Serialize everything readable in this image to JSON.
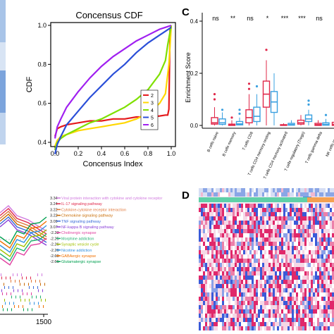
{
  "panels": {
    "c_letter": "C",
    "d_letter": "D"
  },
  "chart_data": [
    {
      "type": "line",
      "title": "Concensus CDF",
      "xlabel": "Concensus Index",
      "ylabel": "CDF",
      "xlim": [
        0,
        1
      ],
      "ylim": [
        0.4,
        1.0
      ],
      "xticks": [
        "0.0",
        "0.2",
        "0.4",
        "0.6",
        "0.8",
        "1.0"
      ],
      "yticks": [
        "0.4",
        "0.6",
        "0.8",
        "1.0"
      ],
      "legend_position": "right",
      "legend_labels": [
        "2",
        "3",
        "4",
        "5",
        "6"
      ],
      "series": [
        {
          "name": "2",
          "color": "#e41a1c",
          "x": [
            0.0,
            0.02,
            0.05,
            0.1,
            0.2,
            0.3,
            0.4,
            0.5,
            0.6,
            0.7,
            0.8,
            0.9,
            0.95,
            0.97,
            0.98,
            0.99,
            1.0
          ],
          "y": [
            0.43,
            0.47,
            0.48,
            0.49,
            0.5,
            0.51,
            0.51,
            0.52,
            0.52,
            0.53,
            0.53,
            0.535,
            0.54,
            0.54,
            0.57,
            0.98,
            1.0
          ]
        },
        {
          "name": "3",
          "color": "#ffd700",
          "x": [
            0.0,
            0.02,
            0.05,
            0.1,
            0.2,
            0.3,
            0.4,
            0.5,
            0.6,
            0.7,
            0.8,
            0.9,
            0.95,
            0.98,
            1.0
          ],
          "y": [
            0.38,
            0.41,
            0.43,
            0.44,
            0.46,
            0.47,
            0.48,
            0.49,
            0.5,
            0.52,
            0.55,
            0.6,
            0.65,
            0.8,
            1.0
          ]
        },
        {
          "name": "4",
          "color": "#7fe000",
          "x": [
            0.0,
            0.02,
            0.05,
            0.1,
            0.2,
            0.3,
            0.4,
            0.5,
            0.6,
            0.7,
            0.8,
            0.9,
            0.95,
            0.97,
            1.0
          ],
          "y": [
            0.36,
            0.4,
            0.42,
            0.44,
            0.47,
            0.5,
            0.52,
            0.55,
            0.58,
            0.62,
            0.67,
            0.75,
            0.82,
            0.9,
            1.0
          ]
        },
        {
          "name": "5",
          "color": "#2b4fd8",
          "x": [
            0.0,
            0.02,
            0.05,
            0.1,
            0.2,
            0.3,
            0.4,
            0.5,
            0.6,
            0.7,
            0.8,
            0.9,
            0.95,
            1.0
          ],
          "y": [
            0.34,
            0.39,
            0.43,
            0.49,
            0.56,
            0.63,
            0.69,
            0.75,
            0.8,
            0.86,
            0.91,
            0.95,
            0.97,
            0.99
          ]
        },
        {
          "name": "6",
          "color": "#a020f0",
          "x": [
            0.0,
            0.02,
            0.05,
            0.1,
            0.2,
            0.3,
            0.4,
            0.5,
            0.6,
            0.7,
            0.8,
            0.9,
            0.95,
            1.0
          ],
          "y": [
            0.42,
            0.48,
            0.52,
            0.58,
            0.66,
            0.73,
            0.79,
            0.84,
            0.88,
            0.92,
            0.95,
            0.98,
            0.99,
            1.0
          ]
        }
      ]
    },
    {
      "type": "box",
      "ylabel": "Enrichment Score",
      "ylim": [
        0,
        0.4
      ],
      "yticks": [
        "0.0",
        "0.2",
        "0.4"
      ],
      "group_colors": [
        "#e0284a",
        "#3aa0e0"
      ],
      "categories": [
        {
          "label": "B cells naive",
          "sig": "ns",
          "boxes": [
            {
              "q1": 0.005,
              "med": 0.01,
              "q3": 0.03,
              "lo": 0,
              "hi": 0.07,
              "out": [
                0.1,
                0.12
              ]
            },
            {
              "q1": 0.004,
              "med": 0.01,
              "q3": 0.025,
              "lo": 0,
              "hi": 0.05,
              "out": [
                0.06
              ]
            }
          ]
        },
        {
          "label": "B cells memory",
          "sig": "**",
          "boxes": [
            {
              "q1": 0.0,
              "med": 0.002,
              "q3": 0.005,
              "lo": 0,
              "hi": 0.02,
              "out": [
                0.03
              ]
            },
            {
              "q1": 0.002,
              "med": 0.006,
              "q3": 0.015,
              "lo": 0,
              "hi": 0.03,
              "out": [
                0.045,
                0.06
              ]
            }
          ]
        },
        {
          "label": "T cells CD8",
          "sig": "ns",
          "boxes": [
            {
              "q1": 0.01,
              "med": 0.03,
              "q3": 0.06,
              "lo": 0,
              "hi": 0.12,
              "out": [
                0.14,
                0.16
              ]
            },
            {
              "q1": 0.015,
              "med": 0.035,
              "q3": 0.07,
              "lo": 0,
              "hi": 0.12,
              "out": [
                0.15
              ]
            }
          ]
        },
        {
          "label": "T cells CD4 memory resting",
          "sig": "*",
          "boxes": [
            {
              "q1": 0.07,
              "med": 0.12,
              "q3": 0.17,
              "lo": 0.0,
              "hi": 0.25,
              "out": [
                0.29
              ]
            },
            {
              "q1": 0.05,
              "med": 0.09,
              "q3": 0.13,
              "lo": 0.0,
              "hi": 0.2,
              "out": []
            }
          ]
        },
        {
          "label": "T cells CD4 memory activated",
          "sig": "***",
          "boxes": [
            {
              "q1": 0.0,
              "med": 0.001,
              "q3": 0.003,
              "lo": 0,
              "hi": 0.008,
              "out": []
            },
            {
              "q1": 0.001,
              "med": 0.003,
              "q3": 0.008,
              "lo": 0,
              "hi": 0.02,
              "out": []
            }
          ]
        },
        {
          "label": "T cells regulatory (Tregs)",
          "sig": "***",
          "boxes": [
            {
              "q1": 0.005,
              "med": 0.01,
              "q3": 0.02,
              "lo": 0,
              "hi": 0.04,
              "out": []
            },
            {
              "q1": 0.015,
              "med": 0.025,
              "q3": 0.04,
              "lo": 0,
              "hi": 0.06,
              "out": [
                0.08,
                0.095
              ]
            }
          ]
        },
        {
          "label": "T cells gamma delta",
          "sig": "ns",
          "boxes": [
            {
              "q1": 0.0,
              "med": 0.003,
              "q3": 0.008,
              "lo": 0,
              "hi": 0.02,
              "out": []
            },
            {
              "q1": 0.001,
              "med": 0.004,
              "q3": 0.01,
              "lo": 0,
              "hi": 0.025,
              "out": [
                0.04
              ]
            }
          ]
        },
        {
          "label": "NK cells resting",
          "sig": "",
          "boxes": [
            {
              "q1": 0.0,
              "med": 0.004,
              "q3": 0.012,
              "lo": 0,
              "hi": 0.03,
              "out": []
            },
            {
              "q1": 0.002,
              "med": 0.006,
              "q3": 0.015,
              "lo": 0,
              "hi": 0.035,
              "out": []
            }
          ]
        }
      ]
    },
    {
      "type": "line",
      "subtype": "gsea-running-score",
      "xtick_label": "1500",
      "pathways": [
        {
          "nes": "3.34",
          "name": "Viral protein interaction with cytokine and cytokine receptor",
          "color": "#d07adf"
        },
        {
          "nes": "3.24",
          "name": "IL-17 signaling pathway",
          "color": "#e0284a"
        },
        {
          "nes": "3.22",
          "name": "Cytokine-cytokine receptor interaction",
          "color": "#e0783a"
        },
        {
          "nes": "3.22",
          "name": "Chemokine signaling pathway",
          "color": "#c86a00"
        },
        {
          "nes": "3.09",
          "name": "TNF signaling pathway",
          "color": "#3a6ad8"
        },
        {
          "nes": "3.07",
          "name": "NF-kappa B signaling pathway",
          "color": "#8a40d8"
        },
        {
          "nes": "-2.23",
          "name": "Cholinergic synapse",
          "color": "#e040a0"
        },
        {
          "nes": "-2.25",
          "name": "Morphine addiction",
          "color": "#20b070"
        },
        {
          "nes": "-2.26",
          "name": "Synaptic vesicle cycle",
          "color": "#a0c000"
        },
        {
          "nes": "-2.26",
          "name": "Nicotine addiction",
          "color": "#3090e0"
        },
        {
          "nes": "-2.60",
          "name": "GABAergic synapse",
          "color": "#f07000"
        },
        {
          "nes": "-2.61",
          "name": "Glutamatergic synapse",
          "color": "#00a050"
        }
      ]
    },
    {
      "type": "heatmap",
      "annotation_colors": [
        "#5fd0a8",
        "#f5a050",
        "#4a90d8"
      ],
      "palette": [
        "#3a5ad8",
        "#ffffff",
        "#e0286a"
      ]
    }
  ]
}
